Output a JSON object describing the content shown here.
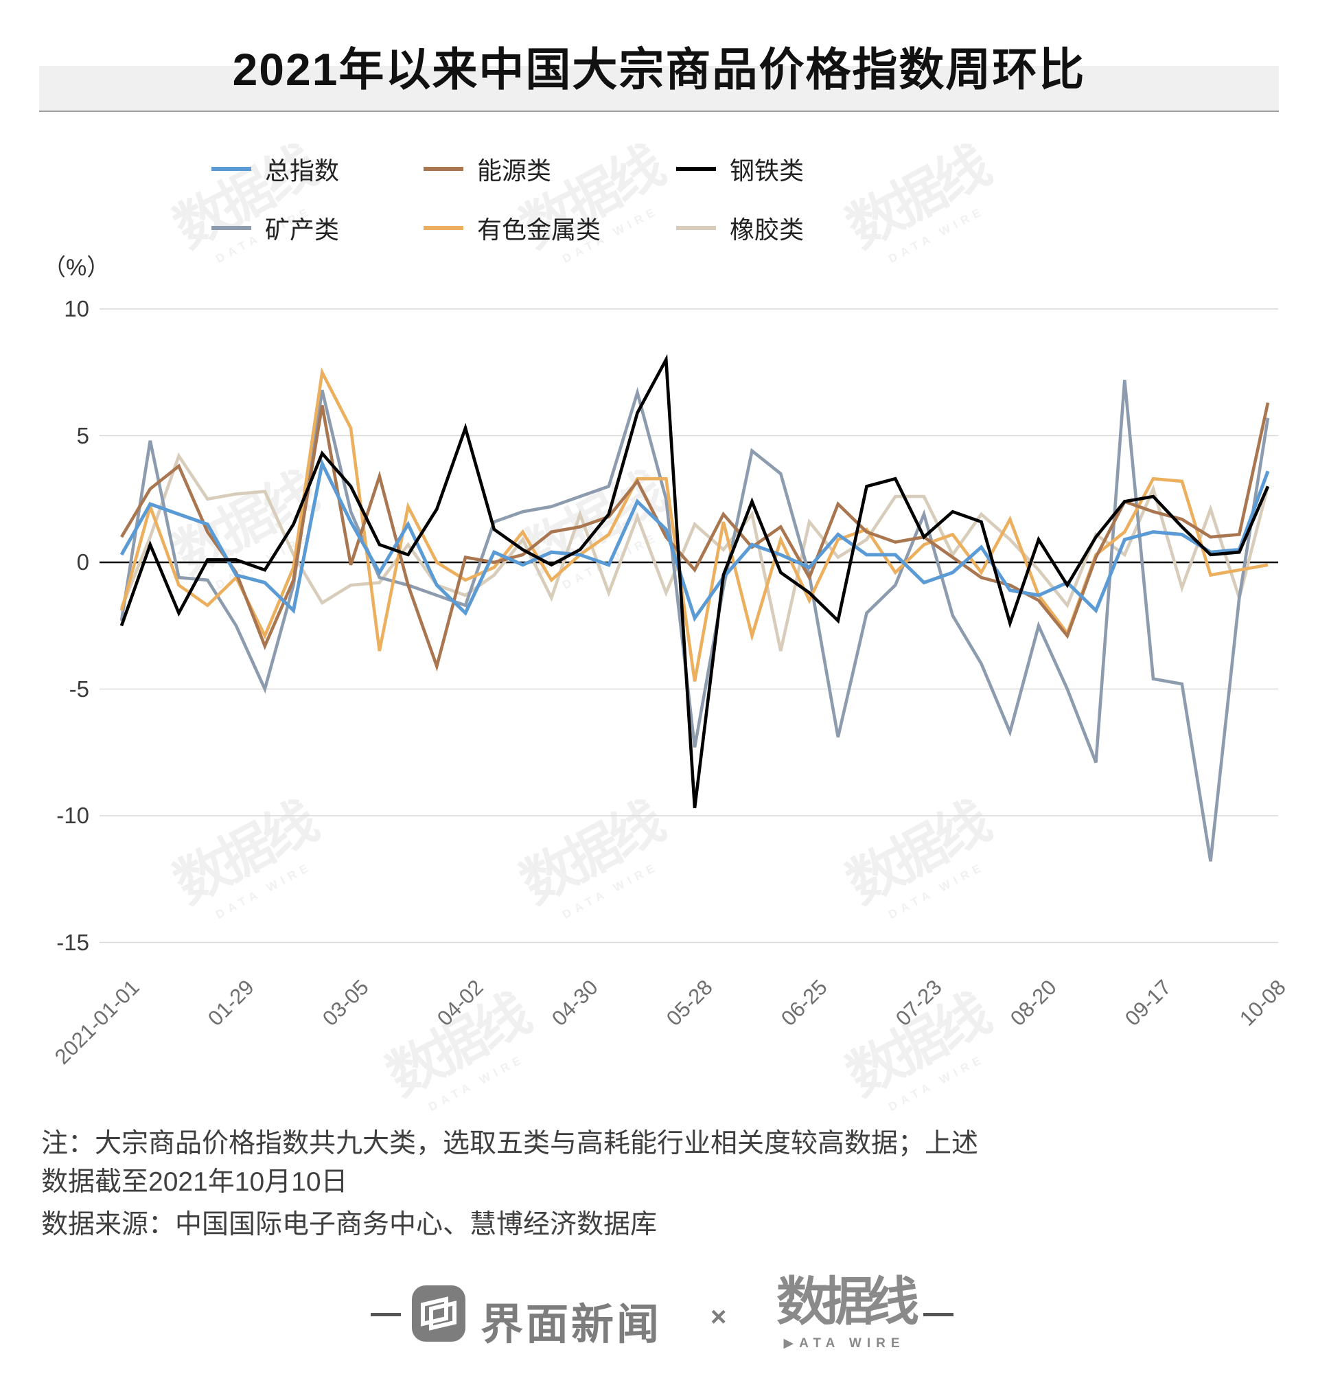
{
  "title": "2021年以来中国大宗商品价格指数周环比",
  "unit_label": "（%）",
  "legend": [
    {
      "label": "总指数",
      "color": "#5B9BD5"
    },
    {
      "label": "能源类",
      "color": "#A9764F"
    },
    {
      "label": "钢铁类",
      "color": "#000000"
    },
    {
      "label": "矿产类",
      "color": "#8C9CAE"
    },
    {
      "label": "有色金属类",
      "color": "#EBAF5E"
    },
    {
      "label": "橡胶类",
      "color": "#D8CCBA"
    }
  ],
  "note_text": "注：大宗商品价格指数共九大类，选取五类与高耗能行业相关度较高数据；上述数据截至2021年10月10日",
  "source_text": "数据来源：中国国际电子商务中心、慧博经济数据库",
  "watermark": {
    "text": "数据线",
    "sub": "DATA WIRE"
  },
  "footer": {
    "jiemian_label": "界面新闻",
    "multiply_sign": "×",
    "datawire_label": "数据线",
    "datawire_sub": "▶ATA WIRE"
  },
  "chart_data": {
    "type": "line",
    "title": "2021年以来中国大宗商品价格指数周环比",
    "ylabel": "（%）",
    "ylim": [
      -15,
      10
    ],
    "yticks": [
      10,
      5,
      0,
      -5,
      -10,
      -15
    ],
    "grid": true,
    "legend_position": "top",
    "n_points": 41,
    "x_tick_labels": [
      "2021-01-01",
      "01-29",
      "03-05",
      "04-02",
      "04-30",
      "05-28",
      "06-25",
      "07-23",
      "08-20",
      "09-17",
      "10-08"
    ],
    "x_tick_indices": [
      0,
      4,
      8,
      12,
      16,
      20,
      24,
      28,
      32,
      36,
      40
    ],
    "series": [
      {
        "name": "总指数",
        "color": "#5B9BD5",
        "values": [
          0.3,
          2.3,
          1.9,
          1.5,
          -0.5,
          -0.8,
          -1.9,
          3.9,
          1.6,
          -0.4,
          1.5,
          -0.9,
          -2.0,
          0.4,
          -0.1,
          0.4,
          0.3,
          -0.1,
          2.4,
          1.3,
          -2.2,
          -0.6,
          0.7,
          0.3,
          -0.2,
          1.1,
          0.3,
          0.3,
          -0.8,
          -0.4,
          0.6,
          -1.1,
          -1.3,
          -0.8,
          -1.9,
          0.9,
          1.2,
          1.1,
          0.4,
          0.5,
          3.6
        ]
      },
      {
        "name": "能源类",
        "color": "#A9764F",
        "values": [
          1.0,
          2.9,
          3.8,
          1.2,
          -0.4,
          -3.3,
          -0.7,
          6.2,
          -0.1,
          3.4,
          -0.9,
          -4.1,
          0.2,
          0.0,
          0.3,
          1.2,
          1.4,
          1.8,
          3.2,
          1.0,
          -0.3,
          1.9,
          0.6,
          1.4,
          -0.6,
          2.3,
          1.2,
          0.8,
          1.0,
          0.2,
          -0.6,
          -0.9,
          -1.5,
          -2.9,
          0.2,
          2.4,
          2.0,
          1.7,
          1.0,
          1.1,
          6.3
        ]
      },
      {
        "name": "钢铁类",
        "color": "#000000",
        "values": [
          -2.5,
          0.7,
          -2.0,
          0.1,
          0.1,
          -0.3,
          1.5,
          4.3,
          3.0,
          0.7,
          0.3,
          2.1,
          5.3,
          1.3,
          0.5,
          -0.1,
          0.5,
          1.9,
          5.9,
          8.0,
          -9.7,
          -0.5,
          2.4,
          -0.4,
          -1.2,
          -2.3,
          3.0,
          3.3,
          1.0,
          2.0,
          1.6,
          -2.4,
          0.9,
          -0.9,
          1.0,
          2.4,
          2.6,
          1.4,
          0.3,
          0.4,
          3.0
        ]
      },
      {
        "name": "矿产类",
        "color": "#8C9CAE",
        "values": [
          -2.3,
          4.8,
          -0.6,
          -0.7,
          -2.5,
          -5.0,
          -0.9,
          6.8,
          2.0,
          -0.6,
          -0.9,
          -1.3,
          -1.7,
          1.6,
          2.0,
          2.2,
          2.6,
          3.0,
          6.7,
          2.5,
          -7.3,
          -1.0,
          4.4,
          3.5,
          -0.5,
          -6.9,
          -2.0,
          -0.9,
          1.9,
          -2.1,
          -4.0,
          -6.7,
          -2.5,
          -5.0,
          -7.9,
          7.2,
          -4.6,
          -4.8,
          -11.8,
          -1.4,
          5.7
        ]
      },
      {
        "name": "有色金属类",
        "color": "#EBAF5E",
        "values": [
          -1.9,
          2.2,
          -0.9,
          -1.7,
          -0.6,
          -2.9,
          -0.2,
          7.5,
          5.3,
          -3.5,
          2.2,
          0.0,
          -0.7,
          -0.2,
          1.2,
          -0.7,
          0.3,
          1.1,
          3.3,
          3.3,
          -4.7,
          1.6,
          -2.9,
          0.9,
          -1.5,
          0.9,
          1.3,
          -0.4,
          0.7,
          1.1,
          -0.4,
          1.7,
          -1.3,
          -2.8,
          0.3,
          1.2,
          3.3,
          3.2,
          -0.5,
          -0.3,
          -0.1
        ]
      },
      {
        "name": "橡胶类",
        "color": "#D8CCBA",
        "values": [
          -1.8,
          1.0,
          4.2,
          2.5,
          2.7,
          2.8,
          0.3,
          -1.6,
          -0.9,
          -0.8,
          0.7,
          -0.9,
          -1.3,
          -0.5,
          0.9,
          -1.4,
          1.9,
          -1.2,
          1.8,
          -1.2,
          1.5,
          0.5,
          1.9,
          -3.5,
          1.6,
          0.2,
          0.9,
          2.6,
          2.6,
          0.3,
          1.9,
          0.9,
          -0.3,
          -1.7,
          1.1,
          0.3,
          2.9,
          -1.0,
          2.1,
          -1.4,
          3.0
        ]
      }
    ]
  }
}
